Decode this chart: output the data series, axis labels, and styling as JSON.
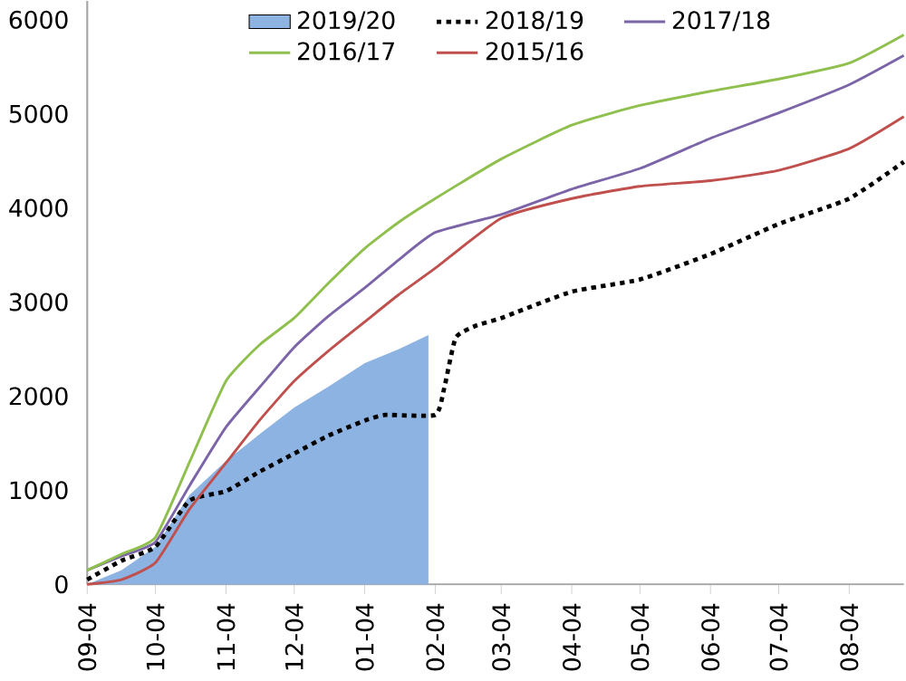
{
  "chart_data": {
    "type": "line",
    "xlim": [
      "2019-09-04",
      "2020-08-28"
    ],
    "ylim": [
      0,
      6200
    ],
    "xticks": [
      {
        "value": "2019-09-04",
        "label": "09-04"
      },
      {
        "value": "2019-10-04",
        "label": "10-04"
      },
      {
        "value": "2019-11-04",
        "label": "11-04"
      },
      {
        "value": "2019-12-04",
        "label": "12-04"
      },
      {
        "value": "2020-01-04",
        "label": "01-04"
      },
      {
        "value": "2020-02-04",
        "label": "02-04"
      },
      {
        "value": "2020-03-04",
        "label": "03-04"
      },
      {
        "value": "2020-04-04",
        "label": "04-04"
      },
      {
        "value": "2020-05-04",
        "label": "05-04"
      },
      {
        "value": "2020-06-04",
        "label": "06-04"
      },
      {
        "value": "2020-07-04",
        "label": "07-04"
      },
      {
        "value": "2020-08-04",
        "label": "08-04"
      }
    ],
    "yticks": [
      0,
      1000,
      2000,
      3000,
      4000,
      5000,
      6000
    ],
    "grid": false,
    "legend": "top",
    "marker": "none",
    "series": [
      {
        "name": "2019/20",
        "type": "area",
        "color": "#8db3e2",
        "x": [
          "2019-09-04",
          "2019-09-19",
          "2019-10-04",
          "2019-10-19",
          "2019-11-04",
          "2019-11-19",
          "2019-12-04",
          "2019-12-19",
          "2020-01-04",
          "2020-01-19",
          "2020-02-01"
        ],
        "values": [
          0,
          150,
          400,
          950,
          1310,
          1600,
          1880,
          2100,
          2350,
          2500,
          2650
        ]
      },
      {
        "name": "2018/19",
        "line_style": "dotted",
        "color": "#000000",
        "x": [
          "2019-09-04",
          "2019-09-19",
          "2019-10-04",
          "2019-10-19",
          "2019-11-04",
          "2019-11-19",
          "2019-12-04",
          "2019-12-19",
          "2020-01-04",
          "2020-01-13",
          "2020-02-04",
          "2020-02-08",
          "2020-02-13",
          "2020-02-22",
          "2020-03-04",
          "2020-04-04",
          "2020-05-04",
          "2020-06-04",
          "2020-07-04",
          "2020-08-04",
          "2020-08-28"
        ],
        "values": [
          50,
          250,
          400,
          890,
          990,
          1200,
          1390,
          1580,
          1740,
          1800,
          1800,
          2090,
          2620,
          2750,
          2830,
          3110,
          3240,
          3510,
          3830,
          4100,
          4490
        ]
      },
      {
        "name": "2017/18",
        "color": "#7b64a8",
        "x": [
          "2019-09-04",
          "2019-09-19",
          "2019-10-04",
          "2019-10-19",
          "2019-11-04",
          "2019-11-19",
          "2019-12-04",
          "2019-12-19",
          "2020-01-04",
          "2020-01-19",
          "2020-02-04",
          "2020-03-04",
          "2020-04-04",
          "2020-05-04",
          "2020-06-04",
          "2020-07-04",
          "2020-08-04",
          "2020-08-28"
        ],
        "values": [
          150,
          300,
          450,
          1050,
          1670,
          2100,
          2520,
          2850,
          3150,
          3450,
          3740,
          3930,
          4200,
          4420,
          4740,
          5010,
          5310,
          5620
        ]
      },
      {
        "name": "2016/17",
        "color": "#8fbf4d",
        "x": [
          "2019-09-04",
          "2019-09-19",
          "2019-10-04",
          "2019-10-19",
          "2019-11-04",
          "2019-11-19",
          "2019-12-04",
          "2019-12-19",
          "2020-01-04",
          "2020-01-19",
          "2020-02-04",
          "2020-03-04",
          "2020-04-04",
          "2020-05-04",
          "2020-06-04",
          "2020-07-04",
          "2020-08-04",
          "2020-08-28"
        ],
        "values": [
          150,
          320,
          500,
          1300,
          2160,
          2550,
          2830,
          3200,
          3570,
          3850,
          4100,
          4520,
          4880,
          5090,
          5240,
          5370,
          5540,
          5840
        ]
      },
      {
        "name": "2015/16",
        "color": "#c0504d",
        "x": [
          "2019-09-04",
          "2019-09-19",
          "2019-10-04",
          "2019-10-19",
          "2019-11-04",
          "2019-11-19",
          "2019-12-04",
          "2019-12-19",
          "2020-01-04",
          "2020-01-19",
          "2020-02-04",
          "2020-03-04",
          "2020-04-04",
          "2020-05-04",
          "2020-06-04",
          "2020-07-04",
          "2020-08-04",
          "2020-08-28"
        ],
        "values": [
          0,
          50,
          230,
          800,
          1290,
          1750,
          2160,
          2480,
          2790,
          3080,
          3360,
          3890,
          4100,
          4230,
          4290,
          4400,
          4630,
          4970
        ]
      }
    ]
  }
}
